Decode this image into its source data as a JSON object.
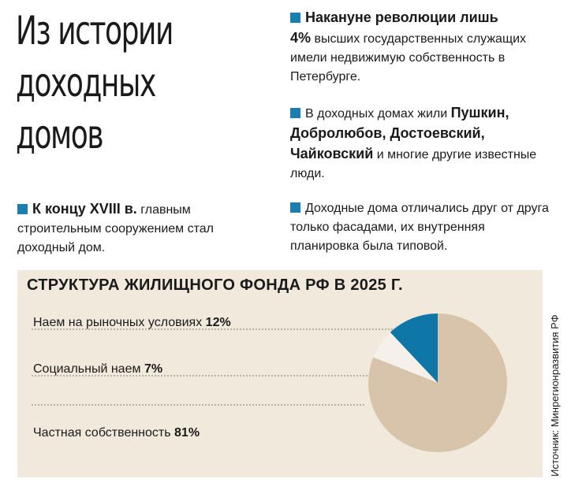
{
  "title": {
    "line1": "Из истории",
    "line2": "доходных",
    "line3": "домов"
  },
  "facts": [
    {
      "bold_a": "Накануне революции лишь",
      "bold_b": "4%",
      "text": " высших государственных служащих имели недвижимую собственность в Петербурге."
    },
    {
      "text_a": "В доходных домах жили ",
      "bold": "Пушкин, Добролюбов, Достоевский, Чайковский",
      "text_b": " и многие другие известные люди."
    },
    {
      "bold": "К концу XVIII в.",
      "text": " главным строительным сооружением стал доходный дом."
    },
    {
      "text": "Доходные дома отличались друг от друга только фасадами, их внутренняя планировка была типовой."
    }
  ],
  "source": "Источник: Минрегионразвития РФ",
  "colors": {
    "accent": "#1a7fb0",
    "panel": "#f1e9dc",
    "slice_private": "#d8c4aa",
    "slice_social": "#f5f1ea",
    "slice_market": "#0f77a8"
  },
  "chart_data": {
    "type": "pie",
    "title": "СТРУКТУРА ЖИЛИЩНОГО ФОНДА РФ В 2025 Г.",
    "unit": "%",
    "legend_position": "left",
    "slices": [
      {
        "label": "Наем на рыночных условиях",
        "value": 12,
        "display": "12%",
        "color": "#0f77a8"
      },
      {
        "label": "Социальный наем",
        "value": 7,
        "display": "7%",
        "color": "#f5f1ea"
      },
      {
        "label": "Частная собственность",
        "value": 81,
        "display": "81%",
        "color": "#d8c4aa"
      }
    ]
  }
}
